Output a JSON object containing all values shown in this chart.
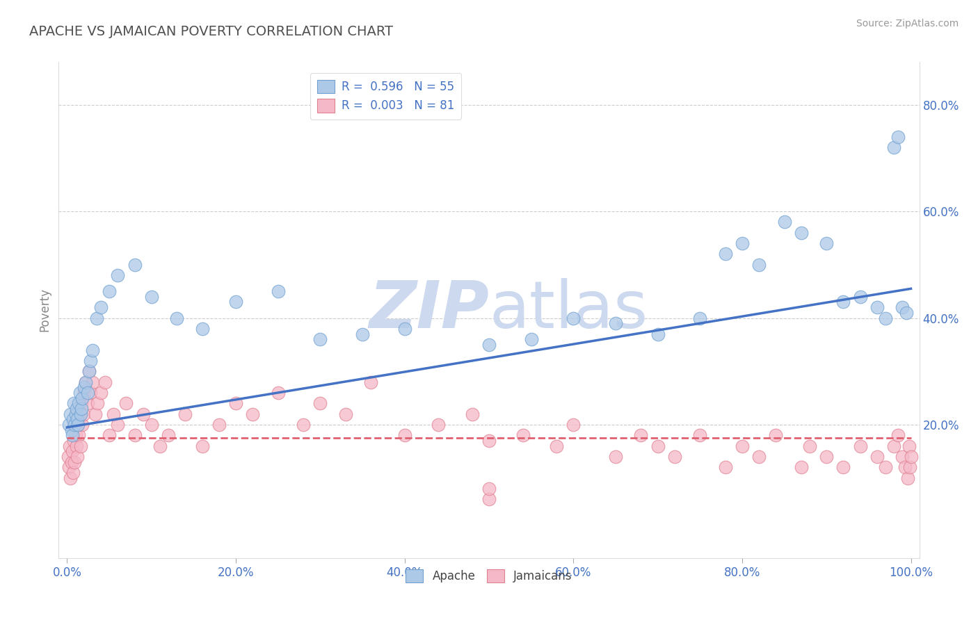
{
  "title": "APACHE VS JAMAICAN POVERTY CORRELATION CHART",
  "source": "Source: ZipAtlas.com",
  "ylabel": "Poverty",
  "xlim": [
    -0.01,
    1.01
  ],
  "ylim": [
    -0.05,
    0.88
  ],
  "x_tick_vals": [
    0,
    0.2,
    0.4,
    0.6,
    0.8,
    1.0
  ],
  "x_tick_labels": [
    "0.0%",
    "20.0%",
    "40.0%",
    "60.0%",
    "80.0%",
    "100.0%"
  ],
  "y_tick_vals": [
    0.2,
    0.4,
    0.6,
    0.8
  ],
  "y_tick_labels": [
    "20.0%",
    "40.0%",
    "60.0%",
    "80.0%"
  ],
  "legend_line1": "R =  0.596   N = 55",
  "legend_line2": "R =  0.003   N = 81",
  "apache_color": "#adc9e8",
  "apache_edge": "#6fa0d0",
  "jamaican_color": "#f5b8c8",
  "jamaican_edge": "#e08090",
  "trend_apache_color": "#4472c4",
  "trend_jamaican_color": "#e06070",
  "background_color": "#ffffff",
  "grid_color": "#cccccc",
  "title_color": "#505050",
  "tick_color": "#4472c4",
  "watermark_color": "#cdd9ee",
  "apache_x": [
    0.002,
    0.004,
    0.005,
    0.006,
    0.007,
    0.008,
    0.009,
    0.01,
    0.011,
    0.012,
    0.013,
    0.014,
    0.015,
    0.016,
    0.017,
    0.018,
    0.02,
    0.022,
    0.024,
    0.026,
    0.028,
    0.03,
    0.035,
    0.04,
    0.05,
    0.06,
    0.08,
    0.1,
    0.13,
    0.16,
    0.2,
    0.25,
    0.3,
    0.35,
    0.4,
    0.5,
    0.55,
    0.6,
    0.65,
    0.7,
    0.75,
    0.78,
    0.8,
    0.82,
    0.85,
    0.87,
    0.9,
    0.92,
    0.94,
    0.96,
    0.97,
    0.98,
    0.985,
    0.99,
    0.995
  ],
  "apache_y": [
    0.2,
    0.22,
    0.19,
    0.18,
    0.21,
    0.24,
    0.2,
    0.22,
    0.23,
    0.21,
    0.2,
    0.24,
    0.26,
    0.22,
    0.23,
    0.25,
    0.27,
    0.28,
    0.26,
    0.3,
    0.32,
    0.34,
    0.4,
    0.42,
    0.45,
    0.48,
    0.5,
    0.44,
    0.4,
    0.38,
    0.43,
    0.45,
    0.36,
    0.37,
    0.38,
    0.35,
    0.36,
    0.4,
    0.39,
    0.37,
    0.4,
    0.52,
    0.54,
    0.5,
    0.58,
    0.56,
    0.54,
    0.43,
    0.44,
    0.42,
    0.4,
    0.72,
    0.74,
    0.42,
    0.41
  ],
  "jamaican_x": [
    0.001,
    0.002,
    0.003,
    0.004,
    0.005,
    0.006,
    0.007,
    0.008,
    0.009,
    0.01,
    0.011,
    0.012,
    0.013,
    0.014,
    0.015,
    0.016,
    0.017,
    0.018,
    0.019,
    0.02,
    0.022,
    0.024,
    0.026,
    0.028,
    0.03,
    0.033,
    0.036,
    0.04,
    0.045,
    0.05,
    0.055,
    0.06,
    0.07,
    0.08,
    0.09,
    0.1,
    0.11,
    0.12,
    0.14,
    0.16,
    0.18,
    0.2,
    0.22,
    0.25,
    0.28,
    0.3,
    0.33,
    0.36,
    0.4,
    0.44,
    0.48,
    0.5,
    0.54,
    0.58,
    0.6,
    0.65,
    0.68,
    0.7,
    0.72,
    0.75,
    0.78,
    0.8,
    0.82,
    0.84,
    0.87,
    0.88,
    0.9,
    0.92,
    0.94,
    0.96,
    0.97,
    0.98,
    0.985,
    0.99,
    0.993,
    0.996,
    0.998,
    0.999,
    1.0,
    0.5,
    0.5
  ],
  "jamaican_y": [
    0.14,
    0.12,
    0.16,
    0.1,
    0.13,
    0.15,
    0.11,
    0.17,
    0.13,
    0.18,
    0.16,
    0.14,
    0.2,
    0.18,
    0.22,
    0.16,
    0.24,
    0.2,
    0.22,
    0.26,
    0.28,
    0.24,
    0.3,
    0.26,
    0.28,
    0.22,
    0.24,
    0.26,
    0.28,
    0.18,
    0.22,
    0.2,
    0.24,
    0.18,
    0.22,
    0.2,
    0.16,
    0.18,
    0.22,
    0.16,
    0.2,
    0.24,
    0.22,
    0.26,
    0.2,
    0.24,
    0.22,
    0.28,
    0.18,
    0.2,
    0.22,
    0.17,
    0.18,
    0.16,
    0.2,
    0.14,
    0.18,
    0.16,
    0.14,
    0.18,
    0.12,
    0.16,
    0.14,
    0.18,
    0.12,
    0.16,
    0.14,
    0.12,
    0.16,
    0.14,
    0.12,
    0.16,
    0.18,
    0.14,
    0.12,
    0.1,
    0.16,
    0.12,
    0.14,
    0.06,
    0.08
  ],
  "trend_apache_x0": 0.0,
  "trend_apache_y0": 0.195,
  "trend_apache_x1": 1.0,
  "trend_apache_y1": 0.455,
  "trend_jamaican_x0": 0.0,
  "trend_jamaican_y0": 0.175,
  "trend_jamaican_x1": 1.0,
  "trend_jamaican_y1": 0.175
}
